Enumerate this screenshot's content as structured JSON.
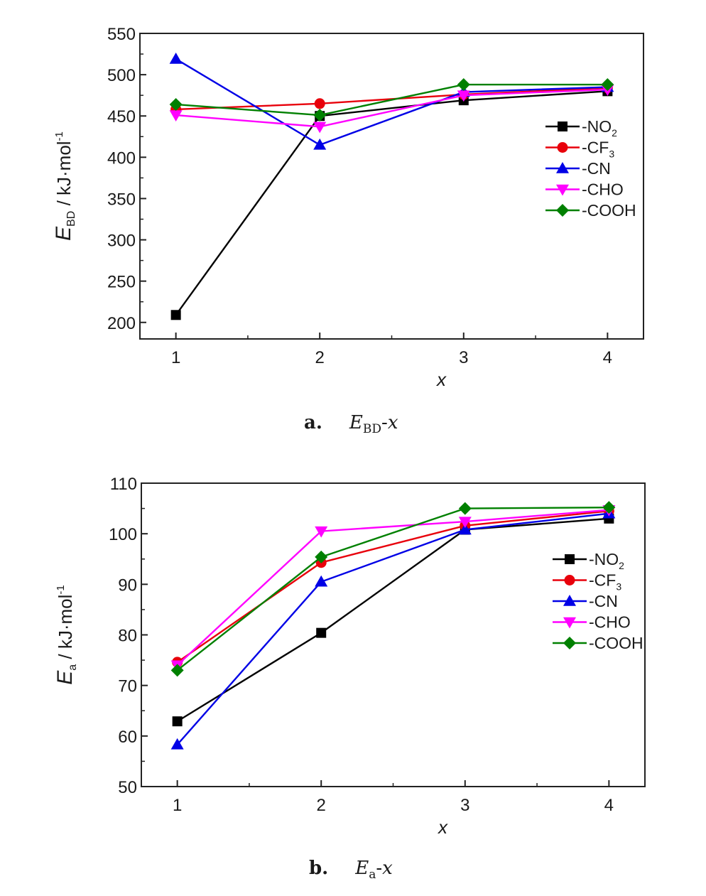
{
  "chart_data": [
    {
      "type": "line",
      "caption": {
        "letter": "a.",
        "symbol": "E",
        "subscript": "BD",
        "suffix": "-x"
      },
      "ylabel": {
        "symbol": "E",
        "subscript": "BD",
        "unit": " / kJ·mol",
        "unit_sup": "-1"
      },
      "xlabel": "x",
      "xlim": [
        0.75,
        4.25
      ],
      "ylim": [
        180,
        550
      ],
      "xticks": [
        "1",
        "2",
        "3",
        "4"
      ],
      "yticks": [
        "200",
        "250",
        "300",
        "350",
        "400",
        "450",
        "500",
        "550"
      ],
      "legend_position": "right",
      "x": [
        1,
        2,
        3,
        4
      ],
      "series": [
        {
          "name": "-NO",
          "sub": "2",
          "color": "#000000",
          "marker": "square",
          "values": [
            209,
            450,
            469,
            480
          ]
        },
        {
          "name": "-CF",
          "sub": "3",
          "color": "#e8000b",
          "marker": "circle",
          "values": [
            458,
            465,
            476,
            484
          ]
        },
        {
          "name": "-CN",
          "sub": "",
          "color": "#0000e6",
          "marker": "triangle-up",
          "values": [
            519,
            415,
            479,
            485
          ]
        },
        {
          "name": "-CHO",
          "sub": "",
          "color": "#ff00ff",
          "marker": "triangle-down",
          "values": [
            451,
            437,
            475,
            482
          ]
        },
        {
          "name": "-COOH",
          "sub": "",
          "color": "#008000",
          "marker": "diamond",
          "values": [
            464,
            451,
            488,
            488
          ]
        }
      ]
    },
    {
      "type": "line",
      "caption": {
        "letter": "b.",
        "symbol": "E",
        "subscript": "a",
        "suffix": "-x"
      },
      "ylabel": {
        "symbol": "E",
        "subscript": "a",
        "unit": " / kJ·mol",
        "unit_sup": "-1"
      },
      "xlabel": "x",
      "xlim": [
        0.75,
        4.25
      ],
      "ylim": [
        50,
        110
      ],
      "xticks": [
        "1",
        "2",
        "3",
        "4"
      ],
      "yticks": [
        "50",
        "60",
        "70",
        "80",
        "90",
        "100",
        "110"
      ],
      "legend_position": "right",
      "x": [
        1,
        2,
        3,
        4
      ],
      "series": [
        {
          "name": "-NO",
          "sub": "2",
          "color": "#000000",
          "marker": "square",
          "values": [
            62.9,
            80.4,
            100.8,
            103.0
          ]
        },
        {
          "name": "-CF",
          "sub": "3",
          "color": "#e8000b",
          "marker": "circle",
          "values": [
            74.6,
            94.3,
            101.6,
            104.5
          ]
        },
        {
          "name": "-CN",
          "sub": "",
          "color": "#0000e6",
          "marker": "triangle-up",
          "values": [
            58.3,
            90.5,
            100.8,
            104.0
          ]
        },
        {
          "name": "-CHO",
          "sub": "",
          "color": "#ff00ff",
          "marker": "triangle-down",
          "values": [
            74.0,
            100.5,
            102.4,
            104.7
          ]
        },
        {
          "name": "-COOH",
          "sub": "",
          "color": "#008000",
          "marker": "diamond",
          "values": [
            73.0,
            95.4,
            105.0,
            105.2
          ]
        }
      ]
    }
  ]
}
